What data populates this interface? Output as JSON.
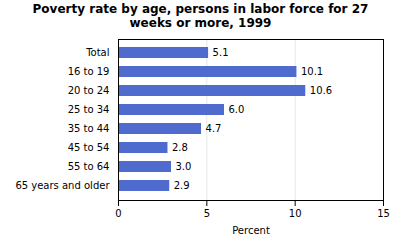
{
  "chart_data": {
    "type": "bar",
    "orientation": "horizontal",
    "title": "Poverty rate by age, persons in labor force for 27\nweeks or more, 1999",
    "categories": [
      "Total",
      "16 to 19",
      "20 to 24",
      "25 to 34",
      "35 to 44",
      "45 to 54",
      "55 to 64",
      "65 years and older"
    ],
    "values": [
      5.1,
      10.1,
      10.6,
      6.0,
      4.7,
      2.8,
      3.0,
      2.9
    ],
    "value_labels": [
      "5.1",
      "10.1",
      "10.6",
      "6.0",
      "4.7",
      "2.8",
      "3.0",
      "2.9"
    ],
    "data_labels": true,
    "color": "#4f6bcd",
    "xlabel": "Percent",
    "xlim": [
      0,
      15
    ],
    "xticks": [
      0,
      5,
      10,
      15
    ],
    "grid": true
  }
}
